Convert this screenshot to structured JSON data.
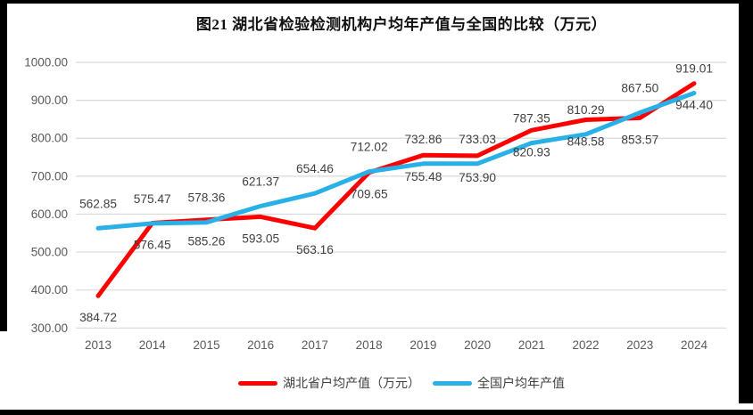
{
  "chart_data": {
    "type": "line",
    "title": "图21  湖北省检验检测机构户均年产值与全国的比较（万元）",
    "categories": [
      "2013",
      "2014",
      "2015",
      "2016",
      "2017",
      "2018",
      "2019",
      "2020",
      "2021",
      "2022",
      "2023",
      "2024"
    ],
    "series": [
      {
        "name": "湖北省户均产值（万元）",
        "color": "#fe0000",
        "label_position": "below",
        "values": [
          384.72,
          576.45,
          585.26,
          593.05,
          563.16,
          709.65,
          755.48,
          753.9,
          820.93,
          848.58,
          853.57,
          944.4
        ]
      },
      {
        "name": "全国户均年产值",
        "color": "#29b1e7",
        "label_position": "above",
        "values": [
          562.85,
          575.47,
          578.36,
          621.37,
          654.46,
          712.02,
          732.86,
          733.03,
          787.35,
          810.29,
          867.5,
          919.01
        ]
      }
    ],
    "ylim": [
      300,
      1000
    ],
    "yticks": [
      {
        "value": 1000,
        "label": "1000.00"
      },
      {
        "value": 900,
        "label": "900.00"
      },
      {
        "value": 800,
        "label": "800.00"
      },
      {
        "value": 700,
        "label": "700.00"
      },
      {
        "value": 600,
        "label": "600.00"
      },
      {
        "value": 500,
        "label": "500.00"
      },
      {
        "value": 400,
        "label": "400.00"
      },
      {
        "value": 300,
        "label": "300.00"
      }
    ],
    "grid": true,
    "legend_position": "bottom",
    "colors": {
      "gridline": "#d9d9d9",
      "axis_text": "#595959",
      "data_label_text": "#404040",
      "title_text": "#111111"
    }
  }
}
